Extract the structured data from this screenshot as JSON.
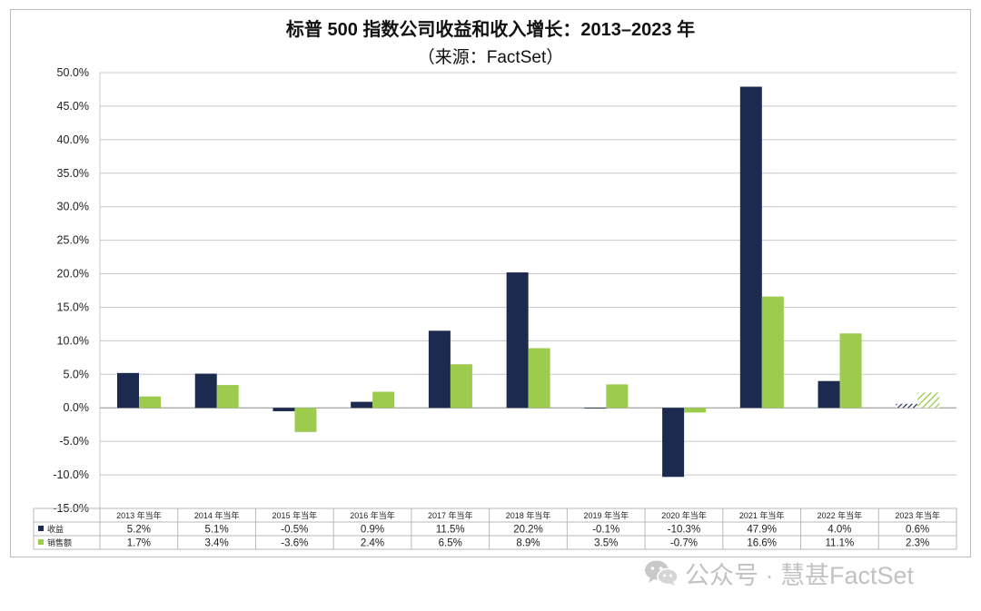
{
  "chart_data": {
    "type": "bar",
    "title": "标普 500 指数公司收益和收入增长：2013–2023 年",
    "subtitle": "（来源：FactSet）",
    "categories": [
      "2013 年当年",
      "2014 年当年",
      "2015 年当年",
      "2016 年当年",
      "2017 年当年",
      "2018 年当年",
      "2019 年当年",
      "2020 年当年",
      "2021 年当年",
      "2022 年当年",
      "2023 年当年"
    ],
    "series": [
      {
        "name": "收益",
        "color": "#1b2a4e",
        "values": [
          5.2,
          5.1,
          -0.5,
          0.9,
          11.5,
          20.2,
          -0.1,
          -10.3,
          47.9,
          4.0,
          0.6
        ],
        "labels": [
          "5.2%",
          "5.1%",
          "-0.5%",
          "0.9%",
          "11.5%",
          "20.2%",
          "-0.1%",
          "-10.3%",
          "47.9%",
          "4.0%",
          "0.6%"
        ]
      },
      {
        "name": "销售额",
        "color": "#9ccb4e",
        "values": [
          1.7,
          3.4,
          -3.6,
          2.4,
          6.5,
          8.9,
          3.5,
          -0.7,
          16.6,
          11.1,
          2.3
        ],
        "labels": [
          "1.7%",
          "3.4%",
          "-3.6%",
          "2.4%",
          "6.5%",
          "8.9%",
          "3.5%",
          "-0.7%",
          "16.6%",
          "11.1%",
          "2.3%"
        ]
      }
    ],
    "hatched_category_index": 10,
    "ylim": [
      -15,
      50
    ],
    "yticks": [
      "-15.0%",
      "-10.0%",
      "-5.0%",
      "0.0%",
      "5.0%",
      "10.0%",
      "15.0%",
      "20.0%",
      "25.0%",
      "30.0%",
      "35.0%",
      "40.0%",
      "45.0%",
      "50.0%"
    ],
    "grid": true,
    "legend": "data-table"
  },
  "watermark": {
    "text": "公众号 · 慧甚FactSet",
    "icon": "wechat-icon"
  }
}
